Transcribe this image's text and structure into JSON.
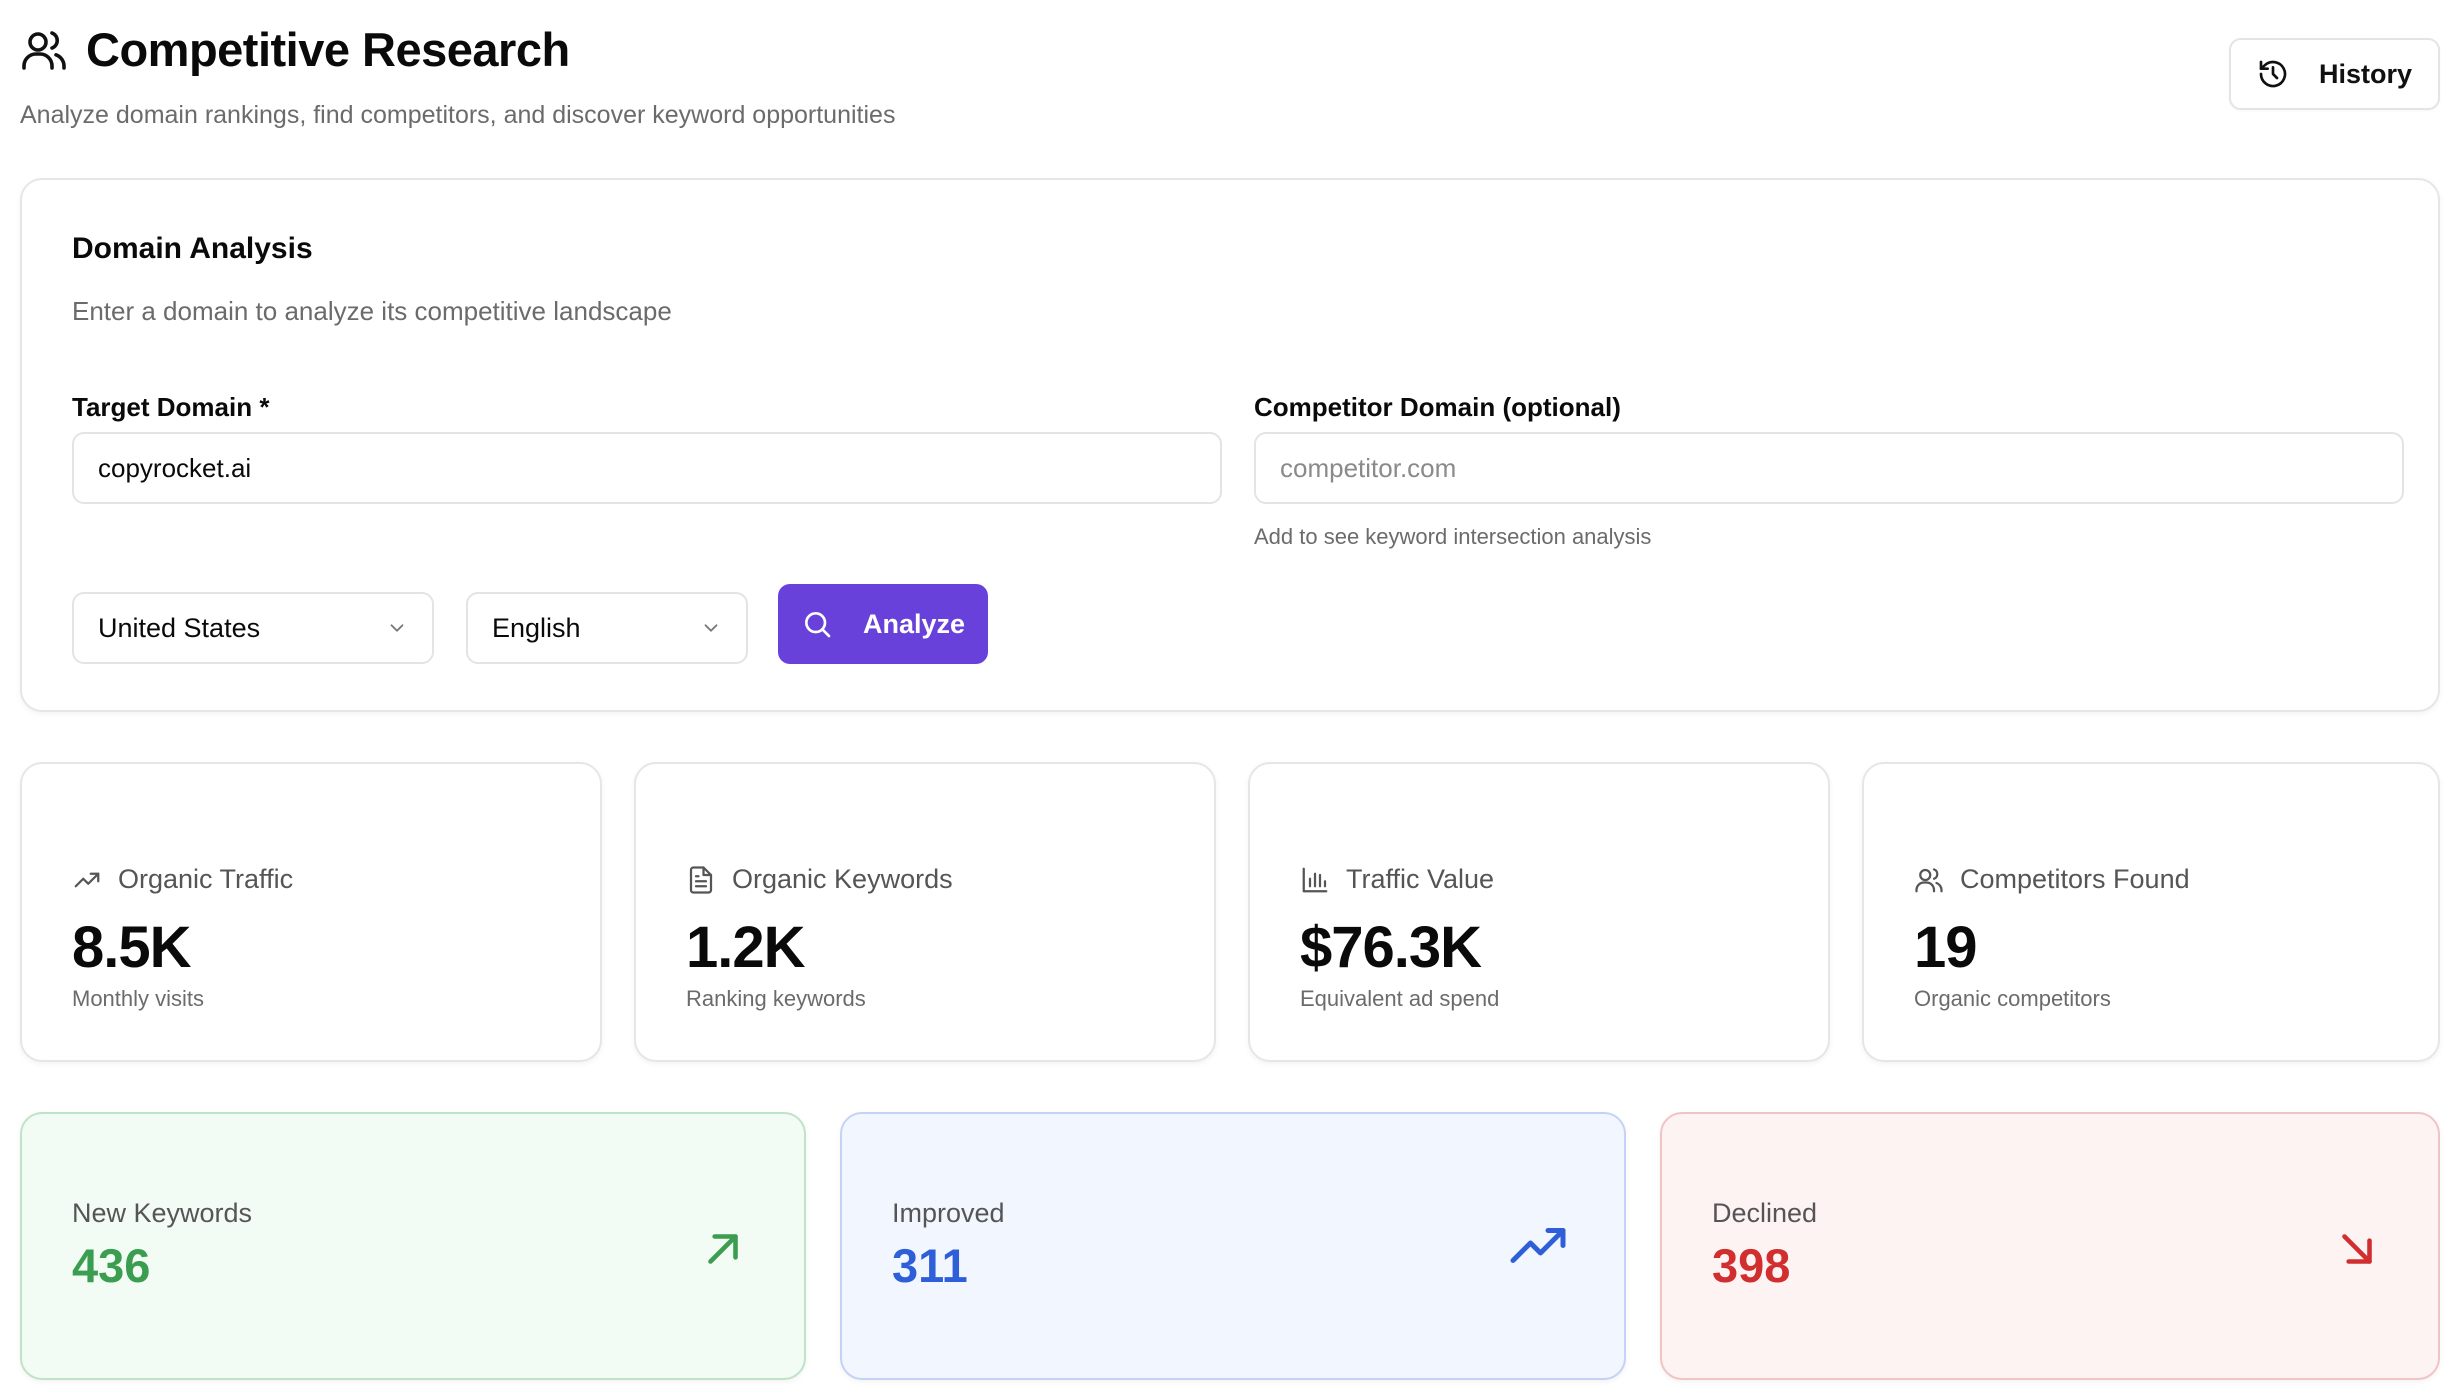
{
  "header": {
    "title": "Competitive Research",
    "subtitle": "Analyze domain rankings, find competitors, and discover keyword opportunities",
    "history_label": "History"
  },
  "domain_analysis": {
    "title": "Domain Analysis",
    "description": "Enter a domain to analyze its competitive landscape",
    "target_label": "Target Domain *",
    "target_value": "copyrocket.ai",
    "competitor_label": "Competitor Domain (optional)",
    "competitor_placeholder": "competitor.com",
    "competitor_hint": "Add to see keyword intersection analysis",
    "country": "United States",
    "language": "English",
    "analyze_label": "Analyze"
  },
  "stats": [
    {
      "label": "Organic Traffic",
      "value": "8.5K",
      "sub": "Monthly visits",
      "icon": "trending-up-icon"
    },
    {
      "label": "Organic Keywords",
      "value": "1.2K",
      "sub": "Ranking keywords",
      "icon": "document-icon"
    },
    {
      "label": "Traffic Value",
      "value": "$76.3K",
      "sub": "Equivalent ad spend",
      "icon": "bar-chart-icon"
    },
    {
      "label": "Competitors Found",
      "value": "19",
      "sub": "Organic competitors",
      "icon": "users-icon"
    }
  ],
  "trends": [
    {
      "label": "New Keywords",
      "value": "436",
      "color": "#3a9d4f",
      "icon": "arrow-up-right-icon"
    },
    {
      "label": "Improved",
      "value": "311",
      "color": "#2f5fd8",
      "icon": "trending-up-icon"
    },
    {
      "label": "Declined",
      "value": "398",
      "color": "#d12f2f",
      "icon": "arrow-down-right-icon"
    }
  ]
}
